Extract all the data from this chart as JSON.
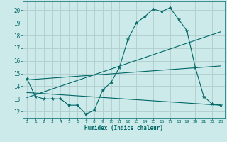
{
  "xlabel": "Humidex (Indice chaleur)",
  "bg_color": "#cceaea",
  "grid_color": "#b0cccc",
  "line_color": "#006666",
  "xlim": [
    -0.5,
    23.5
  ],
  "ylim": [
    11.5,
    20.7
  ],
  "yticks": [
    12,
    13,
    14,
    15,
    16,
    17,
    18,
    19,
    20
  ],
  "xticks": [
    0,
    1,
    2,
    3,
    4,
    5,
    6,
    7,
    8,
    9,
    10,
    11,
    12,
    13,
    14,
    15,
    16,
    17,
    18,
    19,
    20,
    21,
    22,
    23
  ],
  "line1_x": [
    0,
    1,
    2,
    3,
    4,
    5,
    6,
    7,
    8,
    9,
    10,
    11,
    12,
    13,
    14,
    15,
    16,
    17,
    18,
    19,
    20,
    21,
    22,
    23
  ],
  "line1_y": [
    14.6,
    13.2,
    13.0,
    13.0,
    13.0,
    12.5,
    12.5,
    11.8,
    12.1,
    13.7,
    14.3,
    15.5,
    17.7,
    19.0,
    19.5,
    20.1,
    19.9,
    20.2,
    19.3,
    18.4,
    15.5,
    13.2,
    12.6,
    12.5
  ],
  "line2_x": [
    0,
    23
  ],
  "line2_y": [
    13.1,
    18.3
  ],
  "line3_x": [
    0,
    23
  ],
  "line3_y": [
    13.5,
    12.5
  ],
  "line4_x": [
    0,
    23
  ],
  "line4_y": [
    14.5,
    15.6
  ]
}
